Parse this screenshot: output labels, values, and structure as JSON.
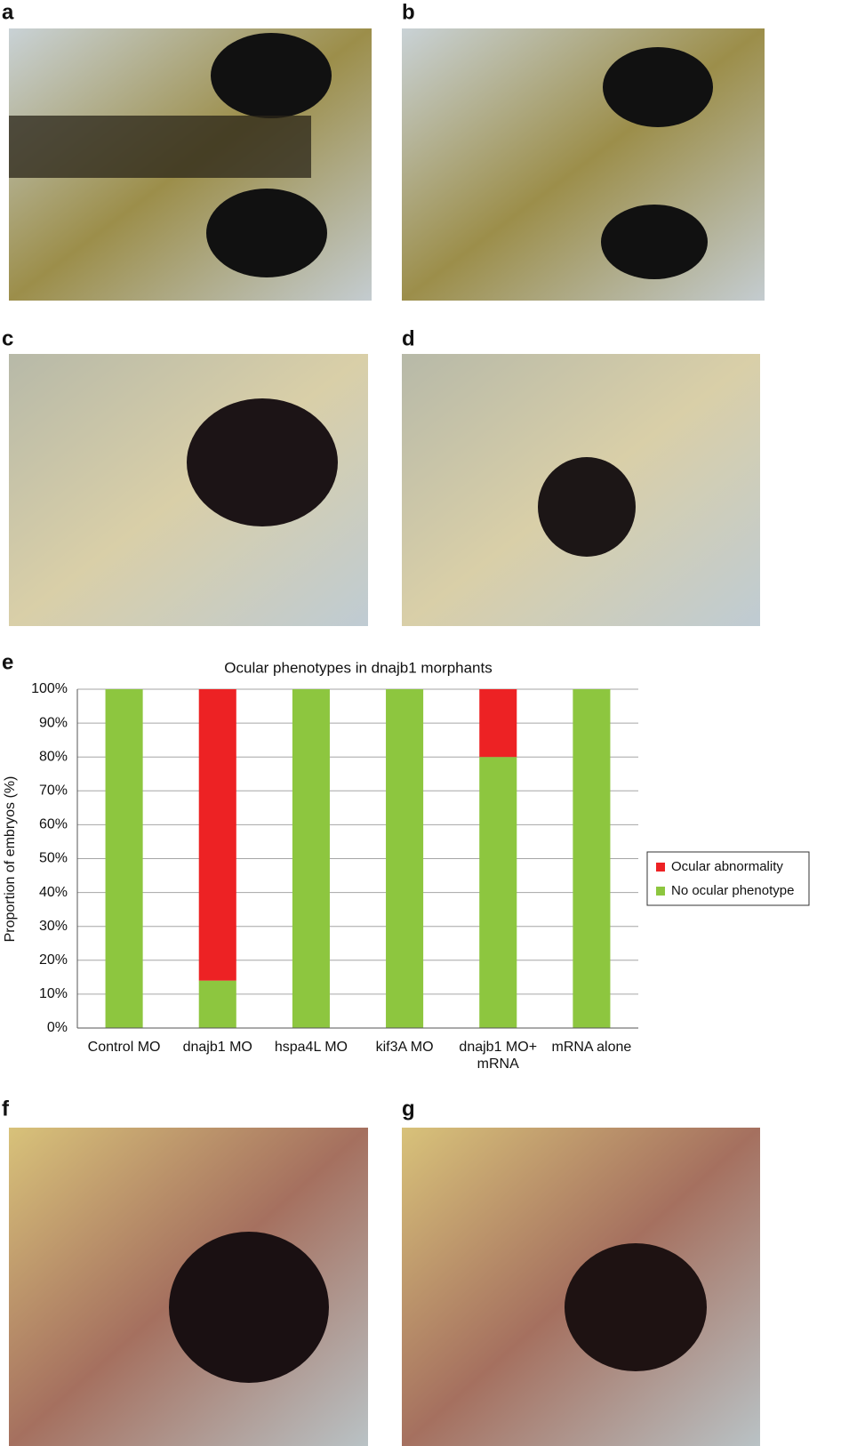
{
  "panels": [
    "a",
    "b",
    "c",
    "d",
    "e",
    "f",
    "g"
  ],
  "chart_data": {
    "type": "stacked_bar",
    "title": "Ocular phenotypes in dnajb1 morphants",
    "ylabel": "Proportion of embryos (%)",
    "categories": [
      "Control MO",
      "dnajb1 MO",
      "hspa4L MO",
      "kif3A MO",
      "dnajb1 MO+ mRNA",
      "mRNA alone"
    ],
    "series": [
      {
        "name": "No ocular phenotype",
        "color": "#8dc63f",
        "values": [
          100,
          14,
          100,
          100,
          80,
          100
        ]
      },
      {
        "name": "Ocular abnormality",
        "color": "#ed2224",
        "values": [
          0,
          86,
          0,
          0,
          20,
          0
        ]
      }
    ],
    "ylim": [
      0,
      100
    ],
    "yticks": [
      {
        "value": 0,
        "label": "0%"
      },
      {
        "value": 10,
        "label": "10%"
      },
      {
        "value": 20,
        "label": "20%"
      },
      {
        "value": 30,
        "label": "30%"
      },
      {
        "value": 40,
        "label": "40%"
      },
      {
        "value": 50,
        "label": "50%"
      },
      {
        "value": 60,
        "label": "60%"
      },
      {
        "value": 70,
        "label": "70%"
      },
      {
        "value": 80,
        "label": "80%"
      },
      {
        "value": 90,
        "label": "90%"
      },
      {
        "value": 100,
        "label": "100%"
      }
    ],
    "grid": true,
    "legend": "right"
  }
}
